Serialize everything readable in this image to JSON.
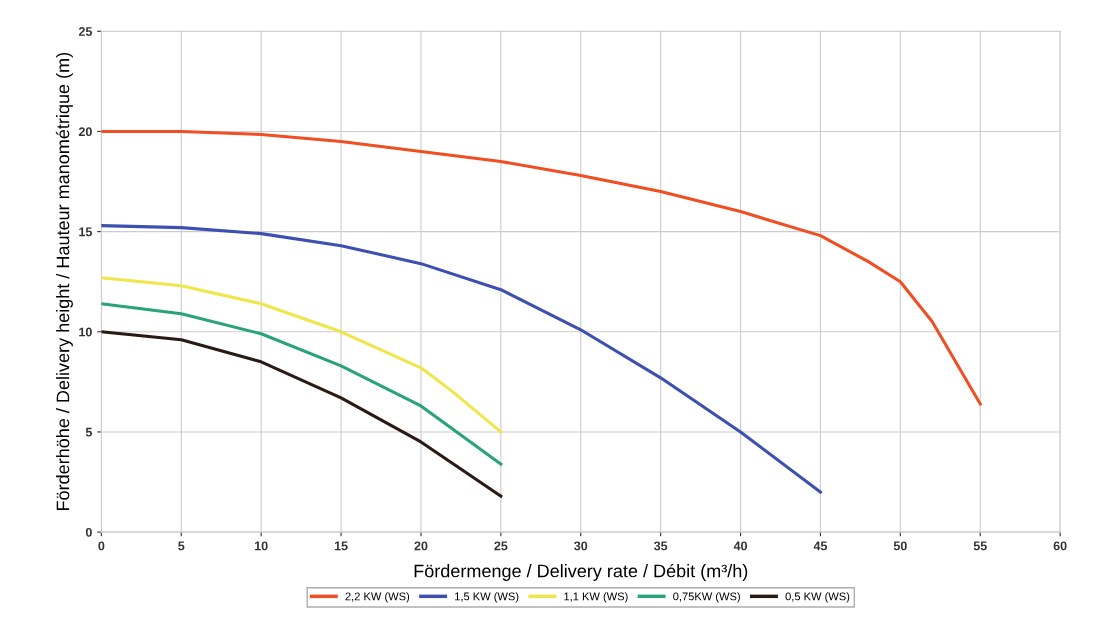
{
  "chart_data": {
    "type": "line",
    "xlabel": "Fördermenge / Delivery rate / Débit (m³/h)",
    "ylabel": "Förderhöhe / Delivery height / Hauteur manométrique (m)",
    "xlim": [
      0,
      60
    ],
    "ylim": [
      0,
      25
    ],
    "xticks": [
      0,
      5,
      10,
      15,
      20,
      25,
      30,
      35,
      40,
      45,
      50,
      55,
      60
    ],
    "yticks": [
      0,
      5,
      10,
      15,
      20,
      25
    ],
    "grid": true,
    "legend": "bottom",
    "marker": "none",
    "line_style": "solid",
    "series": [
      {
        "name": "2,2 KW (WS)",
        "color": "#f04e23",
        "x": [
          0,
          5,
          10,
          15,
          20,
          25,
          30,
          35,
          40,
          45,
          48,
          50,
          52,
          55
        ],
        "values": [
          20,
          20,
          19.85,
          19.5,
          19.0,
          18.5,
          17.8,
          17.0,
          16.0,
          14.8,
          13.5,
          12.5,
          10.5,
          6.4
        ]
      },
      {
        "name": "1,5 KW (WS)",
        "color": "#3d4fb0",
        "x": [
          0,
          5,
          10,
          15,
          20,
          25,
          30,
          35,
          40,
          45
        ],
        "values": [
          15.3,
          15.2,
          14.9,
          14.3,
          13.4,
          12.1,
          10.1,
          7.7,
          5.0,
          2.0
        ]
      },
      {
        "name": "1,1 KW (WS)",
        "color": "#eee64a",
        "x": [
          0,
          5,
          10,
          15,
          20,
          22,
          25
        ],
        "values": [
          12.7,
          12.3,
          11.4,
          10.0,
          8.2,
          7.0,
          5.0
        ]
      },
      {
        "name": "0,75KW (WS)",
        "color": "#2aa37a",
        "x": [
          0,
          5,
          10,
          15,
          20,
          25
        ],
        "values": [
          11.4,
          10.9,
          9.9,
          8.3,
          6.3,
          3.4
        ]
      },
      {
        "name": "0,5 KW (WS)",
        "color": "#2a1a14",
        "x": [
          0,
          5,
          10,
          15,
          20,
          25
        ],
        "values": [
          10.0,
          9.6,
          8.5,
          6.7,
          4.5,
          1.8
        ]
      }
    ]
  }
}
